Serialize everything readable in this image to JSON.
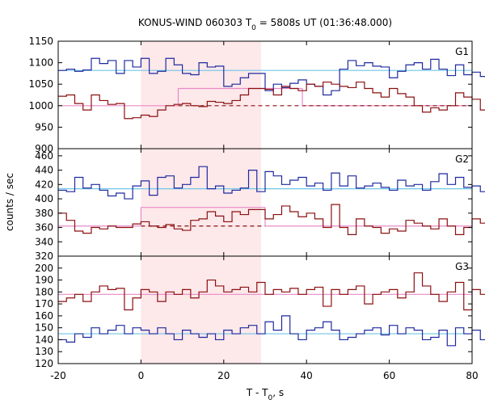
{
  "chart_data": {
    "type": "line",
    "title": "KONUS-WIND 060303 T",
    "title_sub": "0",
    "title_rest": " = 5808s UT (01:36:48.000)",
    "xlabel": "T - T",
    "xlabel_sub": "0",
    "xlabel_rest": ", s",
    "ylabel": "counts / sec",
    "xlim": [
      -20,
      80
    ],
    "xticks": [
      "-20",
      "0",
      "20",
      "40",
      "60",
      "80"
    ],
    "shaded_interval": [
      0,
      29
    ],
    "colors": {
      "G_blue": "#1f2a9e",
      "G_red": "#8b1010",
      "fit_blue": "#6fc6e6",
      "fit_pink": "#e88ac8",
      "shade": "#fde8ea"
    },
    "panels": [
      {
        "label": "G1",
        "ylim": [
          900,
          1150
        ],
        "yticks": [
          "900",
          "950",
          "1000",
          "1050",
          "1100",
          "1150"
        ],
        "bin_start": -20,
        "bin_width": 2,
        "series": [
          {
            "color": "#1f2a9e",
            "values": [
              1082,
              1085,
              1080,
              1083,
              1110,
              1098,
              1105,
              1075,
              1105,
              1090,
              1110,
              1075,
              1080,
              1110,
              1095,
              1075,
              1072,
              1100,
              1090,
              1092,
              1045,
              1050,
              1065,
              1075,
              1075,
              1035,
              1050,
              1042,
              1052,
              1060,
              1050,
              1045,
              1025,
              1035,
              1085,
              1105,
              1093,
              1100,
              1092,
              1090,
              1065,
              1080,
              1095,
              1100,
              1085,
              1108,
              1085,
              1070,
              1095,
              1072,
              1078,
              1068,
              1100,
              1086,
              1100,
              1102,
              1080,
              1098,
              1092,
              1082,
              1038,
              1090,
              1082,
              1086,
              1093,
              1087,
              1082,
              1078,
              1095,
              1088,
              1080,
              1080,
              1100,
              1092,
              1065,
              1090,
              1086,
              1078,
              1092,
              1087
            ]
          },
          {
            "color": "#8b1010",
            "values": [
              1022,
              1025,
              1005,
              990,
              1025,
              1012,
              1003,
              1005,
              970,
              972,
              978,
              975,
              990,
              1000,
              1003,
              1005,
              1000,
              998,
              1010,
              1008,
              1005,
              1012,
              1025,
              1040,
              1040,
              1038,
              1025,
              1045,
              1040,
              1035,
              1050,
              1045,
              1055,
              1050,
              1045,
              1042,
              1055,
              1040,
              1030,
              1020,
              1040,
              1028,
              1020,
              1000,
              985,
              995,
              990,
              1000,
              1030,
              1020,
              1015,
              990,
              1015,
              1000,
              1020,
              1005,
              1010,
              995,
              1000,
              985,
              990,
              1008,
              995,
              1040,
              1020,
              1035,
              1005,
              1010,
              1015,
              1008,
              995,
              1010,
              990,
              1010,
              1020,
              1000,
              1005,
              1015,
              990,
              1000
            ]
          }
        ],
        "fits": [
          {
            "color": "#6fc6e6",
            "style": "solid",
            "segments": [
              [
                -20,
                80,
                1082
              ]
            ]
          },
          {
            "color": "#e88ac8",
            "style": "solid",
            "segments": [
              [
                -20,
                9,
                1000
              ],
              [
                9,
                39,
                1040
              ],
              [
                39,
                80,
                1000
              ]
            ]
          },
          {
            "color": "#8b1010",
            "style": "dashed",
            "segments": [
              [
                9,
                80,
                1000
              ]
            ]
          }
        ]
      },
      {
        "label": "G2",
        "ylim": [
          320,
          470
        ],
        "yticks": [
          "320",
          "340",
          "360",
          "380",
          "400",
          "420",
          "440",
          "460"
        ],
        "bin_start": -20,
        "bin_width": 2,
        "series": [
          {
            "color": "#1f2a9e",
            "values": [
              412,
              410,
              430,
              415,
              420,
              412,
              404,
              408,
              400,
              418,
              425,
              405,
              430,
              432,
              415,
              420,
              430,
              445,
              414,
              418,
              408,
              412,
              415,
              440,
              410,
              438,
              432,
              420,
              426,
              430,
              418,
              422,
              412,
              436,
              418,
              432,
              415,
              418,
              422,
              416,
              412,
              426,
              418,
              420,
              412,
              424,
              435,
              420,
              430,
              416,
              418,
              410,
              422,
              418,
              430,
              420,
              412,
              425,
              428,
              418,
              440,
              425,
              445,
              430,
              418,
              422,
              428,
              430,
              420,
              415,
              445,
              425,
              440,
              450,
              428,
              412,
              422,
              416,
              420,
              418
            ]
          },
          {
            "color": "#8b1010",
            "values": [
              380,
              370,
              355,
              352,
              360,
              358,
              362,
              360,
              360,
              365,
              368,
              362,
              360,
              364,
              358,
              356,
              370,
              372,
              382,
              376,
              368,
              382,
              378,
              385,
              385,
              372,
              378,
              390,
              382,
              375,
              380,
              372,
              360,
              392,
              360,
              350,
              372,
              362,
              360,
              352,
              358,
              355,
              370,
              366,
              362,
              358,
              372,
              362,
              350,
              360,
              372,
              366,
              370,
              358,
              374,
              362,
              358,
              352,
              362,
              368,
              348,
              372,
              360,
              375,
              360,
              345,
              372,
              358,
              365,
              352,
              362,
              370,
              360,
              372,
              360,
              348,
              362,
              358,
              372,
              365
            ]
          }
        ],
        "fits": [
          {
            "color": "#6fc6e6",
            "style": "solid",
            "segments": [
              [
                -20,
                80,
                414
              ]
            ]
          },
          {
            "color": "#e88ac8",
            "style": "solid",
            "segments": [
              [
                -20,
                0,
                362
              ],
              [
                0,
                30,
                388
              ],
              [
                30,
                80,
                362
              ]
            ]
          },
          {
            "color": "#8b1010",
            "style": "dashed",
            "segments": [
              [
                0,
                30,
                362
              ]
            ]
          }
        ]
      },
      {
        "label": "G3",
        "ylim": [
          120,
          210
        ],
        "yticks": [
          "120",
          "130",
          "140",
          "150",
          "160",
          "170",
          "180",
          "190",
          "200"
        ],
        "bin_start": -20,
        "bin_width": 2,
        "series": [
          {
            "color": "#1f2a9e",
            "values": [
              140,
              138,
              145,
              142,
              150,
              145,
              148,
              152,
              145,
              150,
              148,
              145,
              150,
              145,
              140,
              148,
              145,
              142,
              145,
              140,
              148,
              145,
              150,
              152,
              145,
              155,
              148,
              160,
              145,
              140,
              148,
              150,
              155,
              148,
              140,
              142,
              145,
              148,
              150,
              144,
              152,
              145,
              150,
              148,
              140,
              142,
              148,
              135,
              150,
              145,
              148,
              140,
              142,
              150,
              148,
              145,
              152,
              150,
              145,
              148,
              140,
              145,
              135,
              150,
              148,
              142,
              145,
              150,
              148,
              145,
              155,
              140,
              148,
              138,
              150,
              145,
              135,
              148,
              145,
              140
            ]
          },
          {
            "color": "#8b1010",
            "values": [
              172,
              175,
              178,
              172,
              180,
              185,
              182,
              183,
              165,
              175,
              182,
              180,
              172,
              180,
              178,
              182,
              175,
              180,
              190,
              185,
              180,
              182,
              184,
              180,
              188,
              178,
              182,
              180,
              183,
              178,
              182,
              184,
              168,
              182,
              178,
              182,
              185,
              170,
              178,
              180,
              182,
              175,
              180,
              196,
              185,
              178,
              172,
              180,
              188,
              165,
              182,
              178,
              175,
              170,
              165,
              175,
              182,
              178,
              196,
              180,
              175,
              178,
              172,
              182,
              170,
              178,
              175,
              175,
              180,
              172,
              176,
              178,
              180,
              178,
              170,
              175,
              168,
              172,
              178,
              175
            ]
          }
        ],
        "fits": [
          {
            "color": "#6fc6e6",
            "style": "solid",
            "segments": [
              [
                -20,
                80,
                145
              ]
            ]
          },
          {
            "color": "#e88ac8",
            "style": "solid",
            "segments": [
              [
                -20,
                80,
                178
              ]
            ]
          }
        ]
      }
    ]
  }
}
